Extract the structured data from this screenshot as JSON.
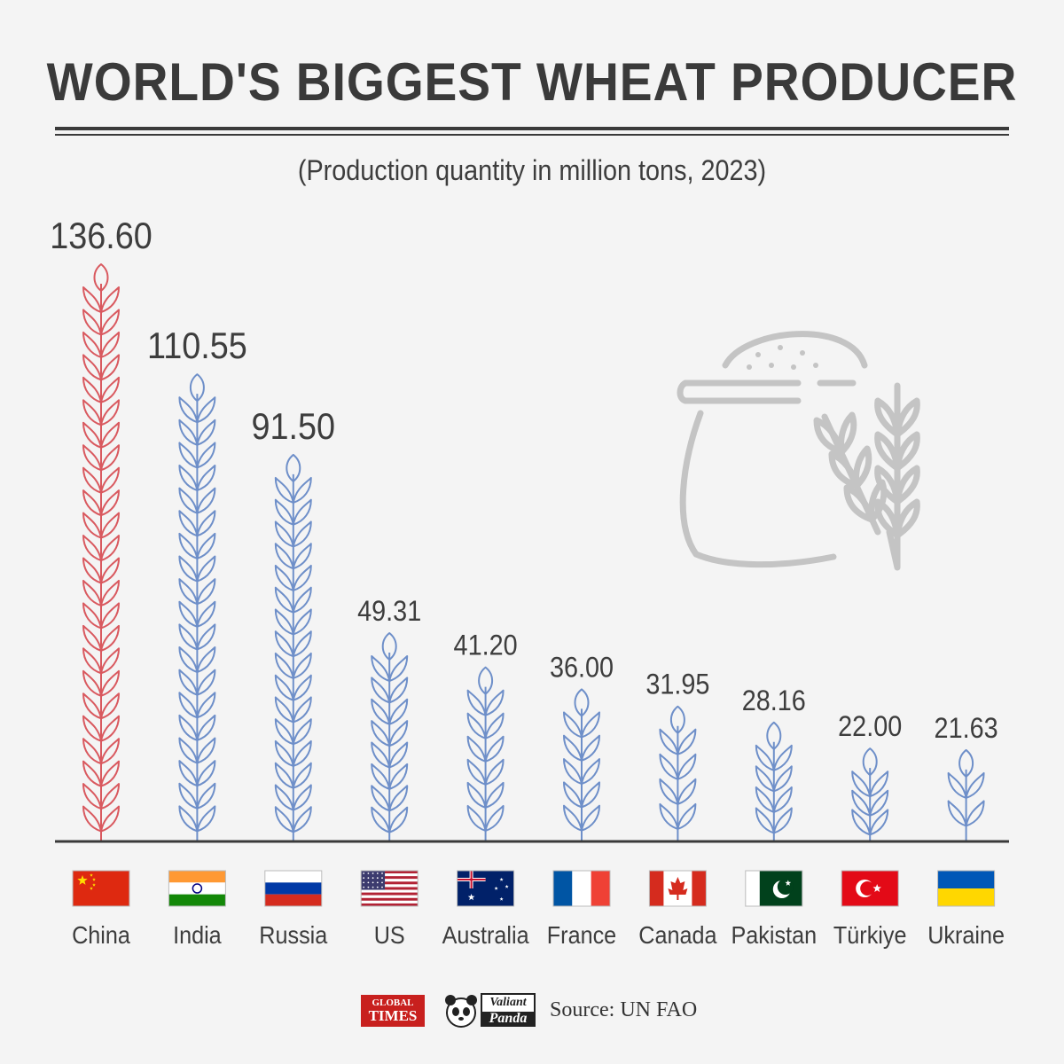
{
  "title": "WORLD'S BIGGEST WHEAT PRODUCER",
  "subtitle": "(Production quantity in million tons, 2023)",
  "colors": {
    "highlight": "#d9595f",
    "default": "#6e8fc9",
    "illustration": "#c4c4c4",
    "text": "#3d3d3d"
  },
  "chart_data": {
    "type": "bar",
    "mark": "wheat-stalk",
    "title": "WORLD'S BIGGEST WHEAT PRODUCER",
    "subtitle": "(Production quantity in million tons, 2023)",
    "unit": "million tons",
    "year": 2023,
    "highlighted_category": "China",
    "categories": [
      "China",
      "India",
      "Russia",
      "US",
      "Australia",
      "France",
      "Canada",
      "Pakistan",
      "Türkiye",
      "Ukraine"
    ],
    "values": [
      136.6,
      110.55,
      91.5,
      49.31,
      41.2,
      36.0,
      31.95,
      28.16,
      22.0,
      21.63
    ],
    "labels": [
      "136.60",
      "110.55",
      "91.50",
      "49.31",
      "41.20",
      "36.00",
      "31.95",
      "28.16",
      "22.00",
      "21.63"
    ],
    "flag_icons": [
      "china-flag-icon",
      "india-flag-icon",
      "russia-flag-icon",
      "us-flag-icon",
      "australia-flag-icon",
      "france-flag-icon",
      "canada-flag-icon",
      "pakistan-flag-icon",
      "turkiye-flag-icon",
      "ukraine-flag-icon"
    ],
    "ylim": [
      0,
      136.6
    ],
    "grid": false,
    "legend": "none"
  },
  "footer": {
    "logo_gt_line1": "GLOBAL",
    "logo_gt_line2": "TIMES",
    "logo_panda_line1": "Valiant",
    "logo_panda_line2": "Panda",
    "source": "Source: UN FAO"
  }
}
